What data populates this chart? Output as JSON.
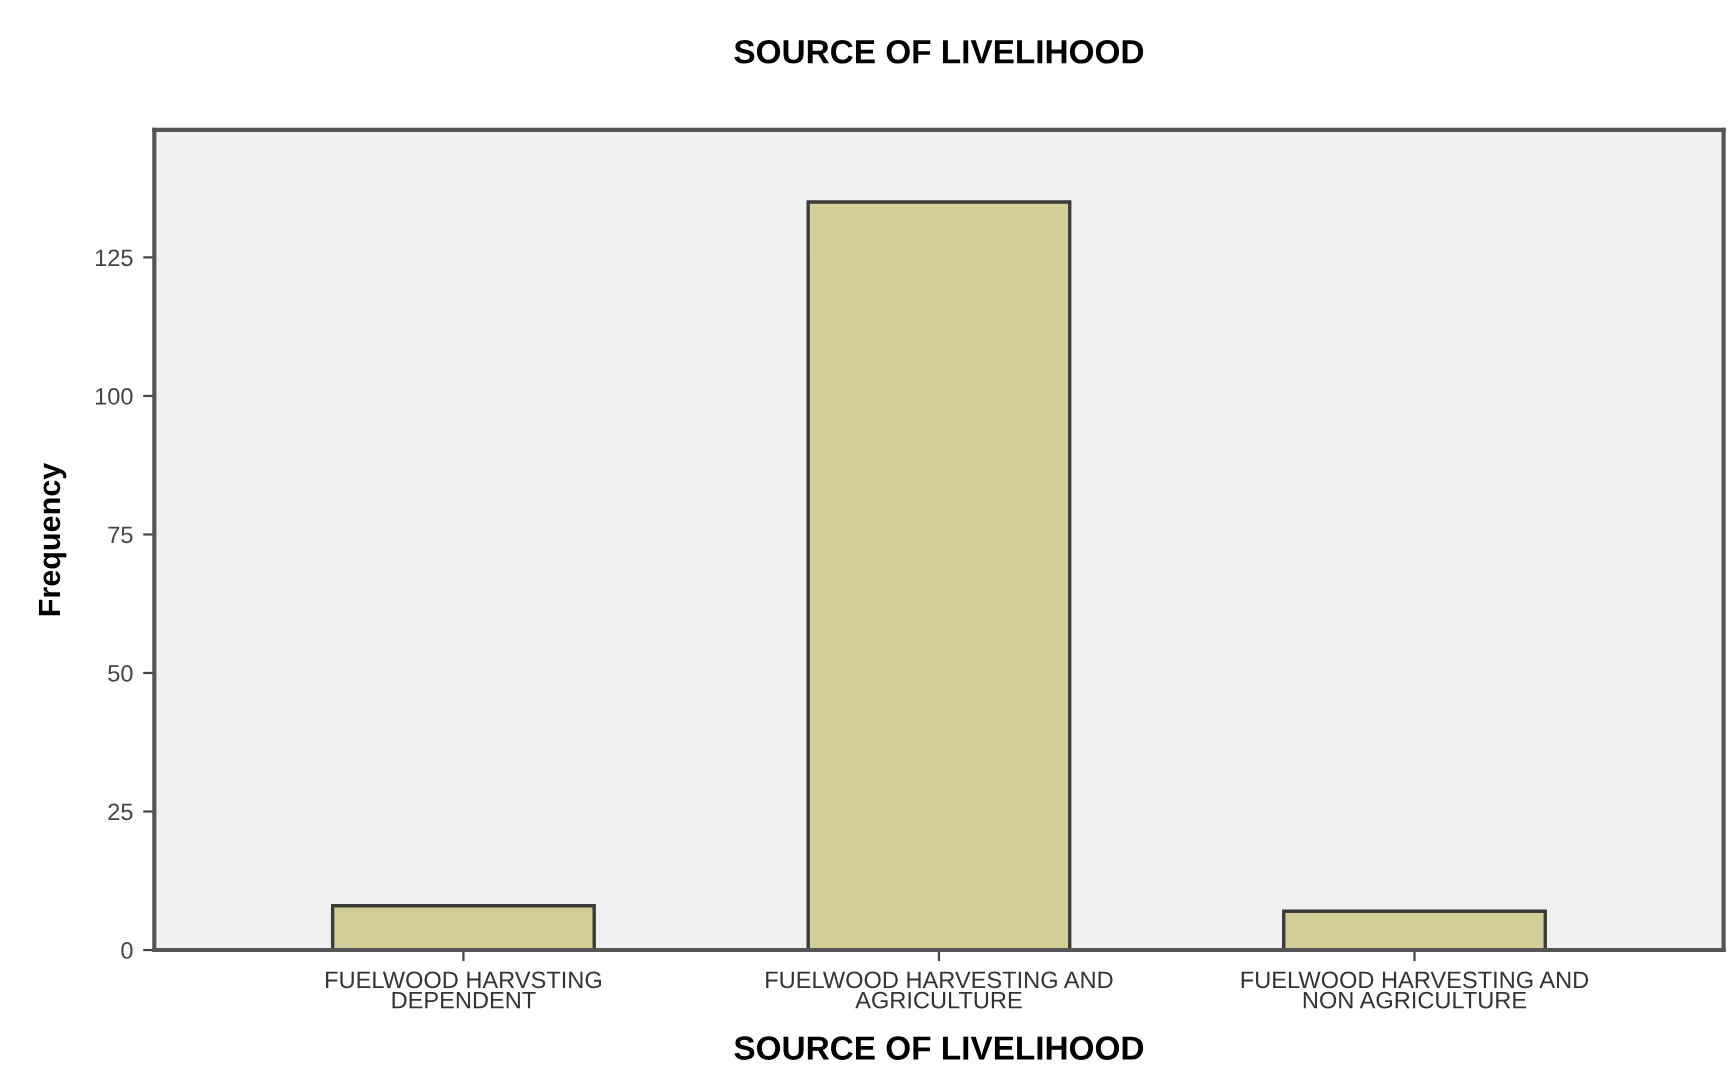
{
  "chart_data": {
    "type": "bar",
    "title": "SOURCE OF LIVELIHOOD",
    "xlabel": "SOURCE OF LIVELIHOOD",
    "ylabel": "Frequency",
    "categories": [
      "FUELWOOD HARVSTING\nDEPENDENT",
      "FUELWOOD HARVESTING AND\nAGRICULTURE",
      "FUELWOOD HARVESTING AND\nNON AGRICULTURE"
    ],
    "values": [
      8,
      135,
      7
    ],
    "color": "#d3ce97",
    "ylim": [
      0,
      148
    ],
    "yticks": [
      0,
      25,
      50,
      75,
      100,
      125
    ],
    "grid": false,
    "legend": false
  }
}
